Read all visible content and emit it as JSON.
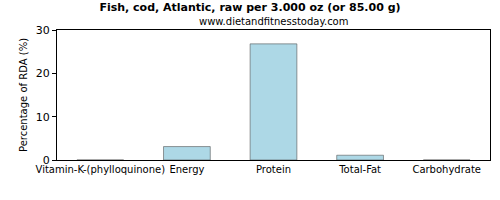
{
  "chart_data": {
    "type": "bar",
    "title": "Fish, cod, Atlantic, raw per 3.000 oz (or 85.00 g)",
    "subtitle": "www.dietandfitnesstoday.com",
    "y_label": "Percentage of RDA (%)",
    "categories": [
      "Vitamin-K-(phylloquinone)",
      "Energy",
      "Protein",
      "Total-Fat",
      "Carbohydrate"
    ],
    "values": [
      0,
      3.1,
      26.8,
      1.1,
      0
    ],
    "color": "#add8e6",
    "ylim": [
      0,
      30
    ],
    "yticks": [
      0,
      10,
      20,
      30
    ],
    "grid": false
  }
}
